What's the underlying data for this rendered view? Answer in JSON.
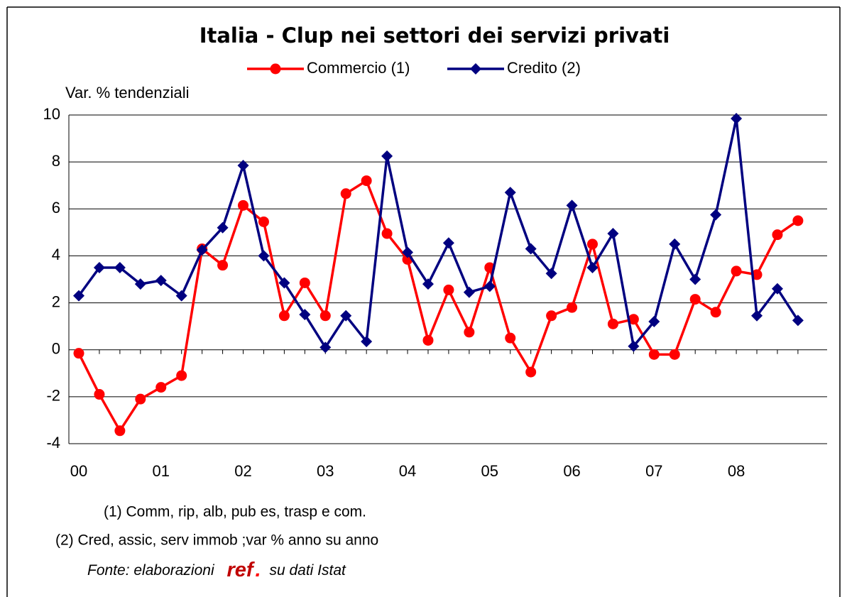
{
  "chart_data": {
    "type": "line",
    "title": "Italia - Clup nei settori dei servizi privati",
    "y_label": "Var. % tendenziali",
    "categories": [
      "00",
      null,
      null,
      null,
      "01",
      null,
      null,
      null,
      "02",
      null,
      null,
      null,
      "03",
      null,
      null,
      null,
      "04",
      null,
      null,
      null,
      "05",
      null,
      null,
      null,
      "06",
      null,
      null,
      null,
      "07",
      null,
      null,
      null,
      "08",
      null,
      null,
      null
    ],
    "series": [
      {
        "name": "Commercio (1)",
        "color": "#ff0000",
        "marker": "circle",
        "values": [
          -0.15,
          -1.9,
          -3.45,
          -2.1,
          -1.6,
          -1.1,
          4.3,
          3.6,
          6.15,
          5.45,
          1.45,
          2.85,
          1.45,
          6.65,
          7.2,
          4.95,
          3.85,
          0.4,
          2.55,
          0.75,
          3.5,
          0.5,
          -0.95,
          1.45,
          1.8,
          4.5,
          1.1,
          1.3,
          -0.2,
          -0.2,
          2.15,
          1.6,
          3.35,
          3.2,
          4.9,
          5.5
        ]
      },
      {
        "name": "Credito (2)",
        "color": "#000080",
        "marker": "diamond",
        "values": [
          2.3,
          3.5,
          3.5,
          2.8,
          2.95,
          2.3,
          4.25,
          5.2,
          7.85,
          4.0,
          2.85,
          1.5,
          0.1,
          1.45,
          0.35,
          8.25,
          4.15,
          2.8,
          4.55,
          2.45,
          2.7,
          6.7,
          4.3,
          3.25,
          6.15,
          3.5,
          4.95,
          0.15,
          1.2,
          4.5,
          3.0,
          5.75,
          9.85,
          1.45,
          2.6,
          1.25
        ]
      }
    ],
    "ylim": [
      -4,
      10
    ],
    "yticks": [
      -4,
      -2,
      0,
      2,
      4,
      6,
      8,
      10
    ],
    "grid": true,
    "notes": [
      "(1) Comm, rip, alb, pub es, trasp e com.",
      "(2) Cred, assic, serv immob ;var % anno su anno"
    ],
    "source": {
      "prefix": "Fonte: elaborazioni",
      "brand": "ref",
      "dot": ".",
      "suffix": "su dati Istat"
    }
  }
}
